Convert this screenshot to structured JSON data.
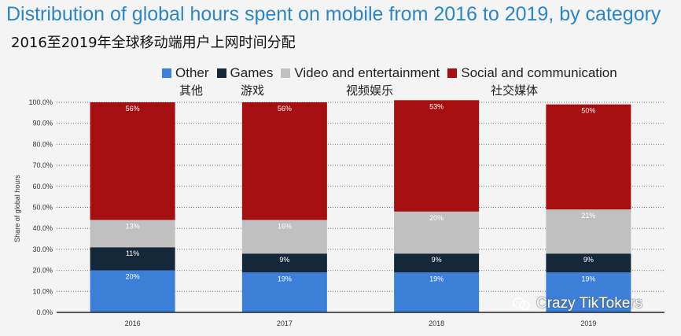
{
  "title_en": "Distribution of global hours spent on mobile from 2016 to 2019, by category",
  "title_cn": "2016至2019年全球移动端用户上网时间分配",
  "legend_cn": [
    "其他",
    "游戏",
    "视频娱乐",
    "社交媒体"
  ],
  "watermark": "Crazy TikTokers",
  "chart_data": {
    "type": "bar",
    "stacked": true,
    "title": "Distribution of global hours spent on mobile from 2016 to 2019, by category",
    "xlabel": "",
    "ylabel": "Share of global hours",
    "ylim": [
      0,
      100
    ],
    "y_ticks": [
      "0.0%",
      "10.0%",
      "20.0%",
      "30.0%",
      "40.0%",
      "50.0%",
      "60.0%",
      "70.0%",
      "80.0%",
      "90.0%",
      "100.0%"
    ],
    "categories": [
      "2016",
      "2017",
      "2018",
      "2019"
    ],
    "grid": true,
    "legend_position": "top",
    "series": [
      {
        "name": "Other",
        "color": "#3b7fd9",
        "values": [
          20,
          19,
          19,
          19
        ],
        "labels": [
          "20%",
          "19%",
          "19%",
          "19%"
        ]
      },
      {
        "name": "Games",
        "color": "#15283a",
        "values": [
          11,
          9,
          9,
          9
        ],
        "labels": [
          "11%",
          "9%",
          "9%",
          "9%"
        ]
      },
      {
        "name": "Video and entertainment",
        "color": "#c0c0c0",
        "values": [
          13,
          16,
          20,
          21
        ],
        "labels": [
          "13%",
          "16%",
          "20%",
          "21%"
        ]
      },
      {
        "name": "Social and communication",
        "color": "#a50f10",
        "values": [
          56,
          56,
          53,
          50
        ],
        "labels": [
          "56%",
          "56%",
          "53%",
          "50%"
        ]
      }
    ]
  }
}
